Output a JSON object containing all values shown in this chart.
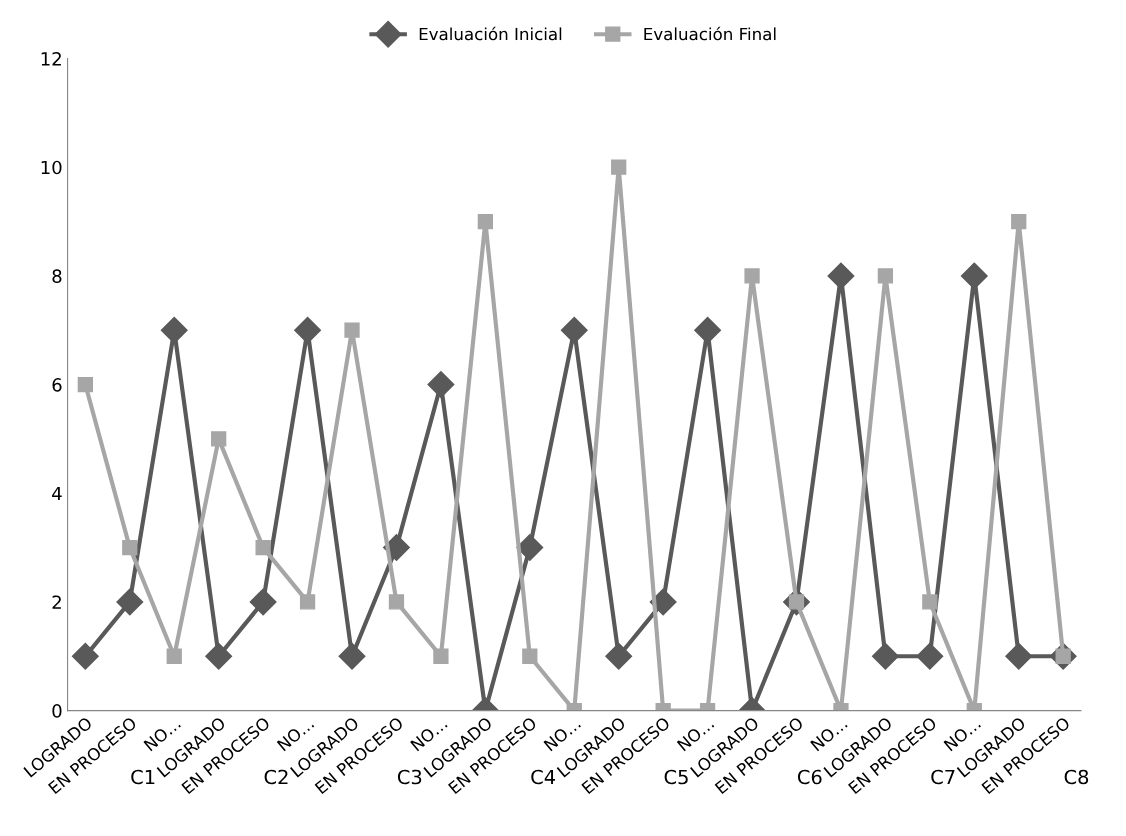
{
  "chart_data": {
    "type": "line",
    "categories": [
      "LOGRADO",
      "EN PROCESO",
      "NO…",
      "LOGRADO",
      "EN PROCESO",
      "NO…",
      "LOGRADO",
      "EN PROCESO",
      "NO…",
      "LOGRADO",
      "EN PROCESO",
      "NO…",
      "LOGRADO",
      "EN PROCESO",
      "NO…",
      "LOGRADO",
      "EN PROCESO",
      "NO…",
      "LOGRADO",
      "EN PROCESO",
      "NO…",
      "LOGRADO",
      "EN PROCESO"
    ],
    "annotations": [
      "C1",
      "C2",
      "C3",
      "C4",
      "C5",
      "C6",
      "C7",
      "C8"
    ],
    "series": [
      {
        "name": "Evaluación Inicial",
        "color": "#595959",
        "marker": "diamond",
        "values": [
          1,
          2,
          7,
          1,
          2,
          7,
          1,
          3,
          6,
          0,
          3,
          7,
          1,
          2,
          7,
          0,
          2,
          8,
          1,
          1,
          8,
          1,
          1
        ]
      },
      {
        "name": "Evaluación Final",
        "color": "#a6a6a6",
        "marker": "square",
        "values": [
          6,
          3,
          1,
          5,
          3,
          2,
          7,
          2,
          1,
          9,
          1,
          0,
          10,
          0,
          0,
          8,
          2,
          0,
          8,
          2,
          0,
          9,
          1
        ]
      }
    ],
    "ylim": [
      0,
      12
    ],
    "yticks": [
      0,
      2,
      4,
      6,
      8,
      10,
      12
    ],
    "grid": false,
    "legend": "top",
    "line_style": "solid"
  }
}
